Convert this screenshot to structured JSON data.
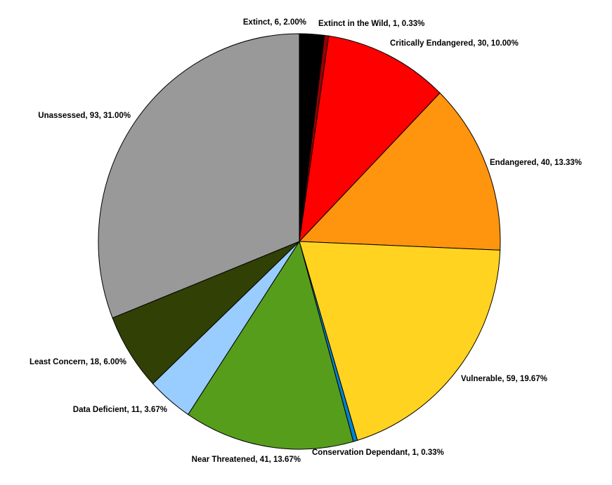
{
  "chart_data": {
    "type": "pie",
    "values": [
      6,
      1,
      30,
      40,
      59,
      1,
      41,
      11,
      18,
      93
    ],
    "value_labels": [
      "Extinct, 6, 2.00%",
      "Extinct in the Wild, 1, 0.33%",
      "Critically Endangered, 30, 10.00%",
      "Endangered, 40, 13.33%",
      "Vulnerable, 59, 19.67%",
      "Conservation Dependant, 1, 0.33%",
      "Near Threatened, 41, 13.67%",
      "Data Deficient, 11, 3.67%",
      "Least Concern, 18, 6.00%",
      "Unassessed, 93, 31.00%"
    ],
    "colors": [
      "#000000",
      "#990000",
      "#ff0000",
      "#ff950e",
      "#ffd320",
      "#0084d1",
      "#579d1c",
      "#99ccff",
      "#314004",
      "#999999"
    ]
  }
}
